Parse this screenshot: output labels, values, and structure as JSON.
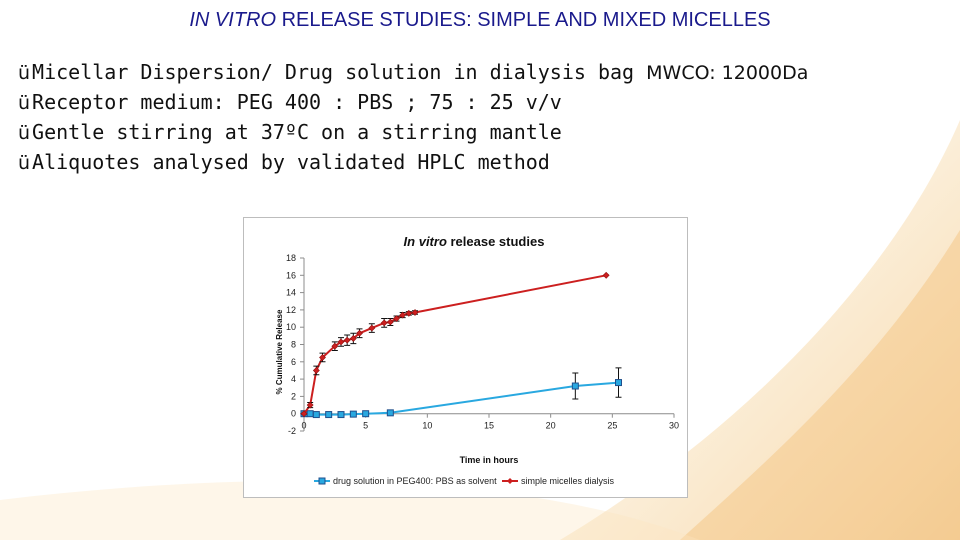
{
  "slide": {
    "title_italic": "IN VITRO",
    "title_rest": " RELEASE STUDIES: SIMPLE AND MIXED MICELLES"
  },
  "bullets": [
    {
      "check": "ü",
      "text": "Micellar Dispersion/ Drug solution in dialysis bag ",
      "extra": "MWCO: 12000Da"
    },
    {
      "check": "ü",
      "text": "Receptor medium: PEG 400 : PBS ; 75 : 25 v/v",
      "extra": ""
    },
    {
      "check": "ü",
      "text": "Gentle stirring at 37ºC on a stirring mantle",
      "extra": ""
    },
    {
      "check": "ü",
      "text": "Aliquotes analysed by validated HPLC method",
      "extra": ""
    }
  ],
  "colors": {
    "title": "#1a1a8c",
    "swoosh": "#f1c27c",
    "series_blue": "#29a8e0",
    "series_red": "#cc1f1f"
  },
  "chart_data": {
    "type": "line",
    "title_italic": "In vitro",
    "title_rest": " release studies",
    "xlabel": "Time in hours",
    "ylabel": "% Cumulative Release",
    "xlim": [
      0,
      30
    ],
    "ylim": [
      -2,
      18
    ],
    "x_ticks": [
      0,
      5,
      10,
      15,
      20,
      25,
      30
    ],
    "y_ticks": [
      -2,
      0,
      2,
      4,
      6,
      8,
      10,
      12,
      14,
      16,
      18
    ],
    "legend_position": "bottom",
    "series": [
      {
        "name": "drug solution in PEG400: PBS as solvent",
        "color": "#29a8e0",
        "marker": "square",
        "points": [
          {
            "x": 0,
            "y": 0,
            "err": 0
          },
          {
            "x": 0.5,
            "y": 0,
            "err": 0
          },
          {
            "x": 1,
            "y": -0.1,
            "err": 0
          },
          {
            "x": 2,
            "y": -0.1,
            "err": 0
          },
          {
            "x": 3,
            "y": -0.1,
            "err": 0
          },
          {
            "x": 4,
            "y": -0.05,
            "err": 0
          },
          {
            "x": 5,
            "y": 0,
            "err": 0
          },
          {
            "x": 7,
            "y": 0.1,
            "err": 0.3
          },
          {
            "x": 22,
            "y": 3.2,
            "err": 1.5
          },
          {
            "x": 25.5,
            "y": 3.6,
            "err": 1.7
          }
        ]
      },
      {
        "name": "simple micelles dialysis",
        "color": "#cc1f1f",
        "marker": "diamond",
        "points": [
          {
            "x": 0,
            "y": 0,
            "err": 0
          },
          {
            "x": 0.5,
            "y": 1.0,
            "err": 0.3
          },
          {
            "x": 1,
            "y": 5.0,
            "err": 0.5
          },
          {
            "x": 1.5,
            "y": 6.5,
            "err": 0.5
          },
          {
            "x": 2.5,
            "y": 7.8,
            "err": 0.5
          },
          {
            "x": 3,
            "y": 8.3,
            "err": 0.5
          },
          {
            "x": 3.5,
            "y": 8.5,
            "err": 0.6
          },
          {
            "x": 4,
            "y": 8.7,
            "err": 0.6
          },
          {
            "x": 4.5,
            "y": 9.3,
            "err": 0.5
          },
          {
            "x": 5.5,
            "y": 9.9,
            "err": 0.5
          },
          {
            "x": 6.5,
            "y": 10.5,
            "err": 0.5
          },
          {
            "x": 7,
            "y": 10.6,
            "err": 0.4
          },
          {
            "x": 7.5,
            "y": 11.0,
            "err": 0.3
          },
          {
            "x": 8,
            "y": 11.4,
            "err": 0.3
          },
          {
            "x": 8.5,
            "y": 11.6,
            "err": 0.2
          },
          {
            "x": 9,
            "y": 11.7,
            "err": 0.2
          },
          {
            "x": 24.5,
            "y": 16.0,
            "err": 0
          }
        ]
      }
    ]
  }
}
